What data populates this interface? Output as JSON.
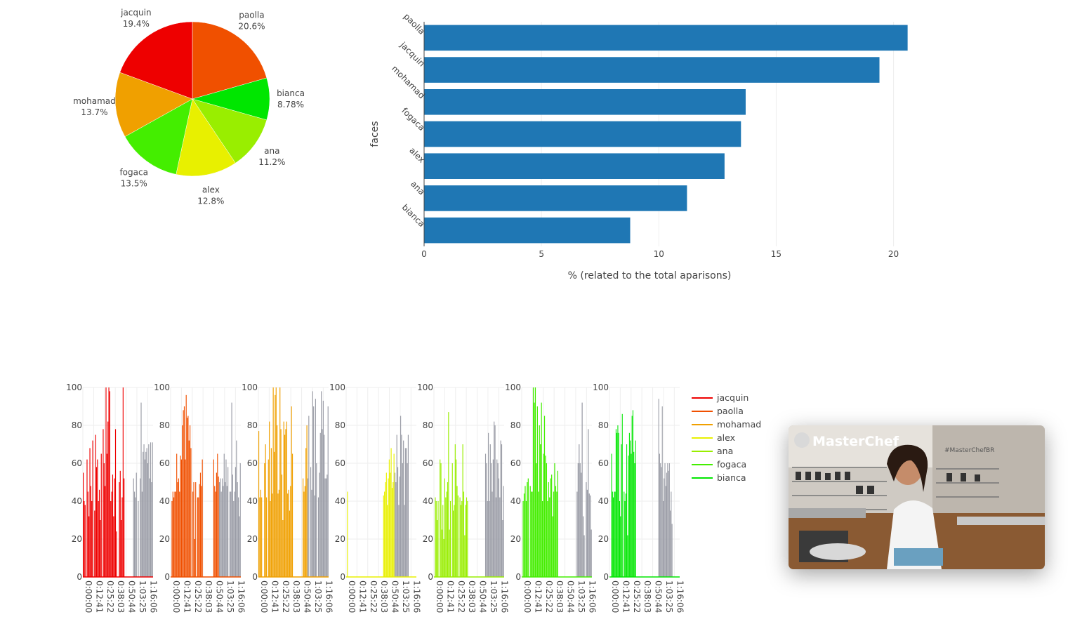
{
  "chart_data": [
    {
      "type": "pie",
      "labels": [
        "paolla",
        "bianca",
        "ana",
        "alex",
        "fogaca",
        "mohamad",
        "jacquin"
      ],
      "values": [
        20.6,
        8.78,
        11.2,
        12.8,
        13.5,
        13.7,
        19.4
      ],
      "value_labels": [
        "20.6%",
        "8.78%",
        "11.2%",
        "12.8%",
        "13.5%",
        "13.7%",
        "19.4%"
      ],
      "colors": [
        "#f05000",
        "#00e600",
        "#99ee00",
        "#e8f000",
        "#44ee00",
        "#f0a000",
        "#ee0000"
      ]
    },
    {
      "type": "bar",
      "orientation": "horizontal",
      "categories": [
        "paolla",
        "jacquin",
        "mohamad",
        "fogaca",
        "alex",
        "ana",
        "bianca"
      ],
      "values": [
        20.6,
        19.4,
        13.7,
        13.5,
        12.8,
        11.2,
        8.78
      ],
      "xlabel": "% (related to the total aparisons)",
      "ylabel": "faces",
      "xlim": [
        0,
        21
      ],
      "xticks": [
        "0",
        "5",
        "10",
        "15",
        "20"
      ],
      "color": "#1f77b4",
      "grid": true
    },
    {
      "type": "bar",
      "layout": "small-multiples",
      "ylim": [
        0,
        100
      ],
      "yticks": [
        "0",
        "20",
        "40",
        "60",
        "80",
        "100"
      ],
      "xticks": [
        "0:00:00",
        "0:12:41",
        "0:25:22",
        "0:38:03",
        "0:50:44",
        "1:03:25",
        "1:16:06"
      ],
      "other_color": "#9a9ca6",
      "series": [
        {
          "name": "jacquin",
          "color": "#ee0000",
          "values": [
            55,
            40,
            38,
            0,
            62,
            45,
            32,
            68,
            48,
            40,
            72,
            0,
            35,
            75,
            58,
            62,
            40,
            46,
            30,
            65,
            0,
            78,
            60,
            48,
            100,
            65,
            82,
            100,
            98,
            40,
            45,
            54,
            32,
            52,
            78,
            24,
            0,
            0,
            50,
            56,
            30,
            42,
            100,
            52,
            0,
            0,
            0,
            0,
            0,
            0,
            0,
            0,
            0,
            52,
            45,
            42,
            55,
            0,
            40,
            0,
            52,
            92,
            45,
            66,
            70,
            62,
            66,
            68,
            60,
            70,
            52,
            71,
            50,
            71
          ]
        },
        {
          "name": "paolla",
          "color": "#f05000",
          "values": [
            0,
            40,
            45,
            42,
            45,
            45,
            65,
            50,
            52,
            45,
            64,
            62,
            80,
            88,
            90,
            62,
            96,
            84,
            85,
            72,
            80,
            68,
            0,
            45,
            50,
            20,
            50,
            0,
            42,
            42,
            49,
            55,
            48,
            62,
            0,
            0,
            0,
            0,
            0,
            0,
            0,
            0,
            0,
            0,
            0,
            62,
            48,
            45,
            55,
            65,
            53,
            50,
            52,
            45,
            52,
            48,
            65,
            50,
            62,
            48,
            58,
            0,
            45,
            45,
            92,
            54,
            40,
            45,
            58,
            72,
            50,
            42,
            32,
            60
          ]
        },
        {
          "name": "mohamad",
          "color": "#f0a000",
          "values": [
            77,
            42,
            46,
            42,
            0,
            0,
            60,
            70,
            42,
            0,
            62,
            82,
            40,
            68,
            44,
            100,
            66,
            96,
            100,
            80,
            44,
            46,
            100,
            78,
            54,
            30,
            82,
            75,
            78,
            82,
            44,
            46,
            35,
            48,
            90,
            65,
            0,
            0,
            0,
            0,
            0,
            0,
            0,
            0,
            0,
            0,
            52,
            45,
            48,
            68,
            80,
            52,
            85,
            0,
            58,
            46,
            98,
            90,
            43,
            94,
            60,
            0,
            42,
            55,
            76,
            98,
            78,
            93,
            75,
            52,
            52,
            54,
            90
          ]
        },
        {
          "name": "alex",
          "color": "#e8f000",
          "values": [
            0,
            45,
            0,
            0,
            0,
            0,
            0,
            0,
            0,
            0,
            0,
            0,
            0,
            0,
            0,
            0,
            0,
            0,
            0,
            0,
            0,
            0,
            0,
            0,
            0,
            0,
            0,
            0,
            0,
            0,
            0,
            0,
            0,
            0,
            0,
            0,
            0,
            0,
            0,
            43,
            45,
            50,
            55,
            38,
            52,
            62,
            55,
            68,
            47,
            50,
            65,
            55,
            50,
            75,
            58,
            38,
            53,
            85,
            75,
            60,
            72,
            38,
            68,
            68,
            60,
            75,
            0,
            0,
            0,
            0,
            0,
            0,
            0,
            0
          ]
        },
        {
          "name": "ana",
          "color": "#99ee00",
          "values": [
            0,
            42,
            40,
            30,
            40,
            0,
            62,
            60,
            25,
            38,
            20,
            52,
            42,
            45,
            50,
            87,
            25,
            40,
            0,
            60,
            35,
            38,
            70,
            62,
            48,
            43,
            0,
            42,
            38,
            40,
            70,
            45,
            22,
            38,
            42,
            40,
            0,
            0,
            0,
            0,
            0,
            0,
            0,
            0,
            0,
            0,
            0,
            0,
            0,
            0,
            0,
            0,
            0,
            0,
            65,
            60,
            40,
            76,
            40,
            70,
            60,
            45,
            62,
            82,
            80,
            42,
            62,
            60,
            52,
            42,
            72,
            70,
            30,
            48
          ]
        },
        {
          "name": "fogaca",
          "color": "#44ee00",
          "values": [
            0,
            40,
            44,
            48,
            40,
            50,
            52,
            0,
            48,
            45,
            45,
            100,
            92,
            100,
            60,
            90,
            45,
            80,
            70,
            92,
            40,
            65,
            85,
            64,
            60,
            40,
            50,
            42,
            52,
            54,
            32,
            45,
            60,
            48,
            45,
            56,
            0,
            0,
            0,
            0,
            0,
            0,
            0,
            0,
            0,
            0,
            0,
            0,
            0,
            0,
            0,
            0,
            0,
            0,
            45,
            60,
            70,
            60,
            55,
            92,
            32,
            22,
            0,
            50,
            46,
            78,
            44,
            43,
            25
          ]
        },
        {
          "name": "bianca",
          "color": "#00e600",
          "values": [
            0,
            0,
            65,
            45,
            42,
            45,
            45,
            78,
            76,
            80,
            76,
            40,
            32,
            70,
            86,
            0,
            45,
            40,
            44,
            70,
            22,
            64,
            76,
            72,
            65,
            85,
            88,
            66,
            60,
            72,
            0,
            0,
            0,
            0,
            0,
            0,
            0,
            0,
            0,
            0,
            0,
            0,
            0,
            0,
            0,
            0,
            0,
            0,
            0,
            0,
            0,
            0,
            0,
            0,
            0,
            94,
            65,
            60,
            58,
            90,
            40,
            52,
            60,
            48,
            55,
            60,
            56,
            60,
            35,
            45,
            28,
            0,
            0,
            0,
            0,
            0,
            0,
            0,
            0
          ]
        }
      ]
    }
  ],
  "legend": {
    "items": [
      {
        "label": "jacquin",
        "color": "#ee0000"
      },
      {
        "label": "paolla",
        "color": "#f05000"
      },
      {
        "label": "mohamad",
        "color": "#f0a000"
      },
      {
        "label": "alex",
        "color": "#e8f000"
      },
      {
        "label": "ana",
        "color": "#99ee00"
      },
      {
        "label": "fogaca",
        "color": "#44ee00"
      },
      {
        "label": "bianca",
        "color": "#00e600"
      }
    ]
  },
  "video": {
    "logo": "MasterChef",
    "hashtag": "#MasterChefBR"
  }
}
